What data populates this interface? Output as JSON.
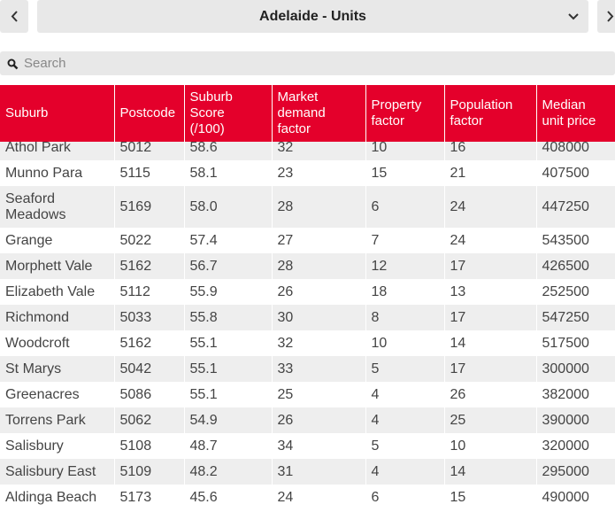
{
  "header": {
    "title": "Adelaide - Units"
  },
  "search": {
    "placeholder": "Search"
  },
  "table": {
    "columns": [
      "Suburb",
      "Postcode",
      "Suburb Score (/100)",
      "Market demand factor",
      "Property factor",
      "Population factor",
      "Median unit price"
    ],
    "rows": [
      [
        "Athol Park",
        "5012",
        "58.6",
        "32",
        "10",
        "16",
        "408000"
      ],
      [
        "Munno Para",
        "5115",
        "58.1",
        "23",
        "15",
        "21",
        "407500"
      ],
      [
        "Seaford Meadows",
        "5169",
        "58.0",
        "28",
        "6",
        "24",
        "447250"
      ],
      [
        "Grange",
        "5022",
        "57.4",
        "27",
        "7",
        "24",
        "543500"
      ],
      [
        "Morphett Vale",
        "5162",
        "56.7",
        "28",
        "12",
        "17",
        "426500"
      ],
      [
        "Elizabeth Vale",
        "5112",
        "55.9",
        "26",
        "18",
        "13",
        "252500"
      ],
      [
        "Richmond",
        "5033",
        "55.8",
        "30",
        "8",
        "17",
        "547250"
      ],
      [
        "Woodcroft",
        "5162",
        "55.1",
        "32",
        "10",
        "14",
        "517500"
      ],
      [
        "St Marys",
        "5042",
        "55.1",
        "33",
        "5",
        "17",
        "300000"
      ],
      [
        "Greenacres",
        "5086",
        "55.1",
        "25",
        "4",
        "26",
        "382000"
      ],
      [
        "Torrens Park",
        "5062",
        "54.9",
        "26",
        "4",
        "25",
        "390000"
      ],
      [
        "Salisbury",
        "5108",
        "48.7",
        "34",
        "5",
        "10",
        "320000"
      ],
      [
        "Salisbury East",
        "5109",
        "48.2",
        "31",
        "4",
        "14",
        "295000"
      ],
      [
        "Aldinga Beach",
        "5173",
        "45.6",
        "24",
        "6",
        "15",
        "490000"
      ]
    ]
  }
}
